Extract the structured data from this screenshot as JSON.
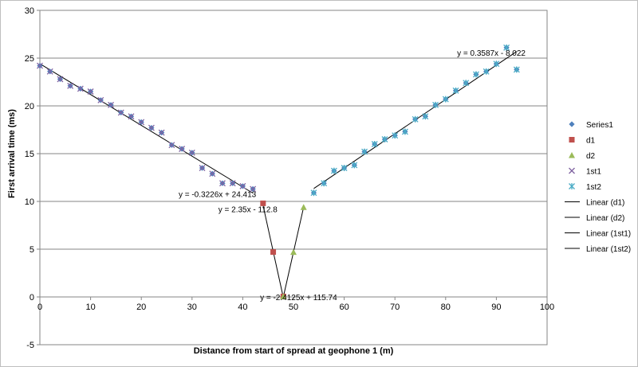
{
  "chart_data": {
    "type": "scatter",
    "xlabel": "Distance  from start of spread at geophone 1 (m)",
    "ylabel": "First arrival time (ms)",
    "xlim": [
      0,
      100
    ],
    "ylim": [
      -5,
      30
    ],
    "x_ticks": [
      0,
      10,
      20,
      30,
      40,
      50,
      60,
      70,
      80,
      90,
      100
    ],
    "y_ticks": [
      -5,
      0,
      5,
      10,
      15,
      20,
      25,
      30
    ],
    "x_tick_labels": [
      "0",
      "10",
      "20",
      "30",
      "40",
      "50",
      "60",
      "70",
      "80",
      "90",
      "100"
    ],
    "y_tick_labels": [
      "-5",
      "0",
      "5",
      "10",
      "15",
      "20",
      "25",
      "30"
    ],
    "grid": "horizontal",
    "legend_position": "right",
    "series": [
      {
        "name": "Series1",
        "marker": "diamond",
        "color": "#4f81bd",
        "points": [
          [
            0,
            24.2
          ],
          [
            2,
            23.6
          ],
          [
            4,
            22.8
          ],
          [
            6,
            22.1
          ],
          [
            8,
            21.8
          ],
          [
            10,
            21.5
          ],
          [
            12,
            20.6
          ],
          [
            14,
            20.1
          ],
          [
            16,
            19.3
          ],
          [
            18,
            18.9
          ],
          [
            20,
            18.3
          ],
          [
            22,
            17.7
          ],
          [
            24,
            17.2
          ],
          [
            26,
            15.9
          ],
          [
            28,
            15.5
          ],
          [
            30,
            15.1
          ],
          [
            32,
            13.5
          ],
          [
            34,
            12.9
          ],
          [
            36,
            11.9
          ],
          [
            38,
            11.9
          ],
          [
            40,
            11.6
          ],
          [
            42,
            11.3
          ],
          [
            54,
            10.9
          ],
          [
            56,
            11.9
          ],
          [
            58,
            13.2
          ],
          [
            60,
            13.5
          ],
          [
            62,
            13.8
          ],
          [
            64,
            15.2
          ],
          [
            66,
            16.0
          ],
          [
            68,
            16.5
          ],
          [
            70,
            16.9
          ],
          [
            72,
            17.3
          ],
          [
            74,
            18.6
          ],
          [
            76,
            18.9
          ],
          [
            78,
            20.1
          ],
          [
            80,
            20.7
          ],
          [
            82,
            21.6
          ],
          [
            84,
            22.4
          ],
          [
            86,
            23.3
          ],
          [
            88,
            23.6
          ],
          [
            90,
            24.4
          ],
          [
            92,
            26.1
          ],
          [
            94,
            23.8
          ]
        ]
      },
      {
        "name": "d1",
        "marker": "square",
        "color": "#c0504d",
        "points": [
          [
            44,
            9.8
          ],
          [
            46,
            4.7
          ],
          [
            48,
            0.05
          ]
        ]
      },
      {
        "name": "d2",
        "marker": "triangle",
        "color": "#9bbb59",
        "points": [
          [
            48,
            0.05
          ],
          [
            50,
            4.7
          ],
          [
            52,
            9.4
          ]
        ]
      },
      {
        "name": "1st1",
        "marker": "x",
        "color": "#8064a2",
        "points": [
          [
            0,
            24.2
          ],
          [
            2,
            23.6
          ],
          [
            4,
            22.8
          ],
          [
            6,
            22.1
          ],
          [
            8,
            21.8
          ],
          [
            10,
            21.5
          ],
          [
            12,
            20.6
          ],
          [
            14,
            20.1
          ],
          [
            16,
            19.3
          ],
          [
            18,
            18.9
          ],
          [
            20,
            18.3
          ],
          [
            22,
            17.7
          ],
          [
            24,
            17.2
          ],
          [
            26,
            15.9
          ],
          [
            28,
            15.5
          ],
          [
            30,
            15.1
          ],
          [
            32,
            13.5
          ],
          [
            34,
            12.9
          ],
          [
            36,
            11.9
          ],
          [
            38,
            11.9
          ],
          [
            40,
            11.6
          ],
          [
            42,
            11.3
          ]
        ]
      },
      {
        "name": "1st2",
        "marker": "star",
        "color": "#4bacc6",
        "points": [
          [
            54,
            10.9
          ],
          [
            56,
            11.9
          ],
          [
            58,
            13.2
          ],
          [
            60,
            13.5
          ],
          [
            62,
            13.8
          ],
          [
            64,
            15.2
          ],
          [
            66,
            16.0
          ],
          [
            68,
            16.5
          ],
          [
            70,
            16.9
          ],
          [
            72,
            17.3
          ],
          [
            74,
            18.6
          ],
          [
            76,
            18.9
          ],
          [
            78,
            20.1
          ],
          [
            80,
            20.7
          ],
          [
            82,
            21.6
          ],
          [
            84,
            22.4
          ],
          [
            86,
            23.3
          ],
          [
            88,
            23.6
          ],
          [
            90,
            24.4
          ],
          [
            92,
            26.1
          ],
          [
            94,
            23.8
          ]
        ]
      }
    ],
    "trendlines": [
      {
        "name": "Linear (d1)",
        "slope": -2.4125,
        "intercept": 115.74,
        "x_range": [
          44,
          48
        ],
        "label": "y = -2.4125x + 115.74",
        "label_at": [
          51,
          0.0
        ]
      },
      {
        "name": "Linear (d2)",
        "slope": 2.35,
        "intercept": -112.8,
        "x_range": [
          48,
          52
        ],
        "label": "y = 2.35x - 112.8",
        "label_at": [
          41,
          9.2
        ]
      },
      {
        "name": "Linear (1st1)",
        "slope": -0.3226,
        "intercept": 24.413,
        "x_range": [
          0,
          42
        ],
        "label": "y = -0.3226x + 24.413",
        "label_at": [
          35,
          10.8
        ]
      },
      {
        "name": "Linear (1st2)",
        "slope": 0.3587,
        "intercept": -8.022,
        "x_range": [
          54,
          94
        ],
        "label": "y = 0.3587x - 8.022",
        "label_at": [
          89,
          25.6
        ]
      }
    ],
    "legend": [
      "Series1",
      "d1",
      "d2",
      "1st1",
      "1st2",
      "Linear (d1)",
      "Linear (d2)",
      "Linear (1st1)",
      "Linear (1st2)"
    ]
  }
}
